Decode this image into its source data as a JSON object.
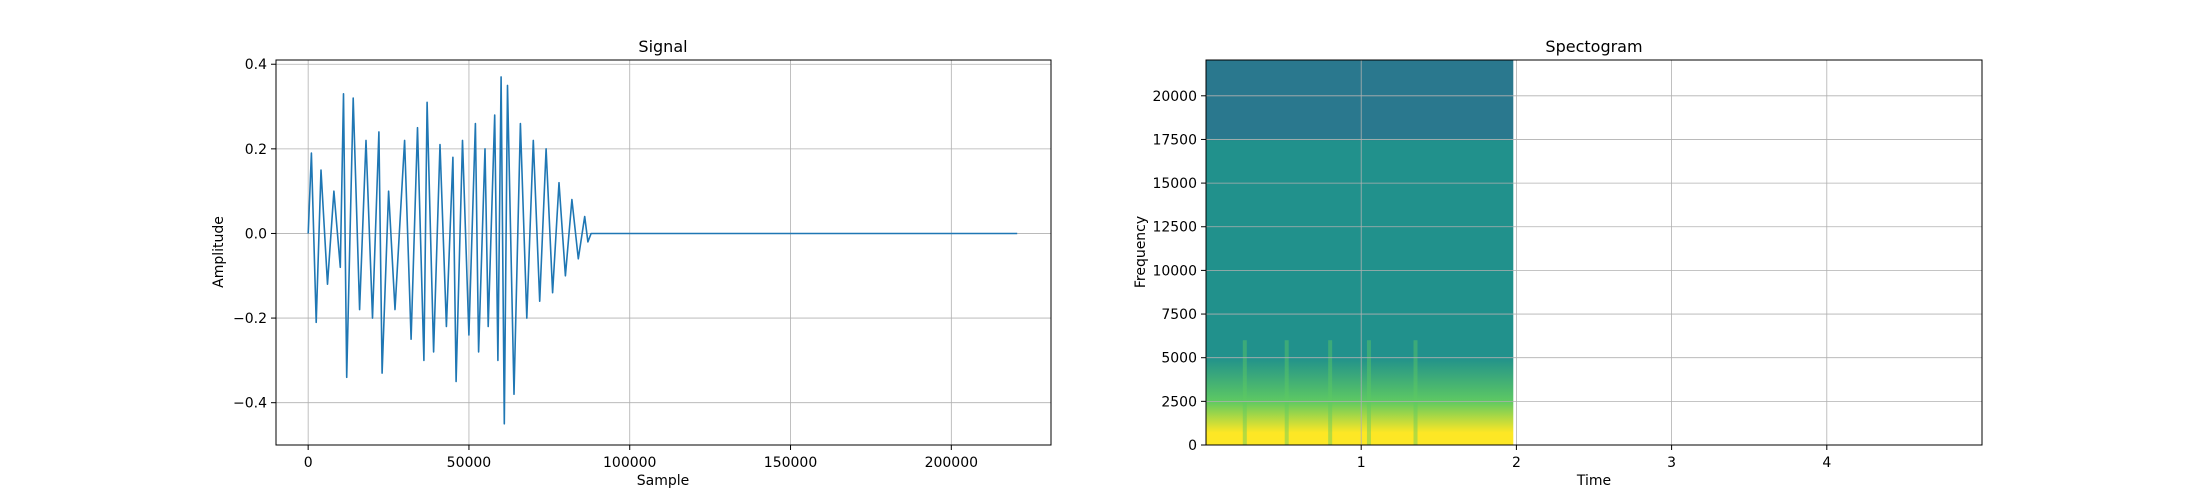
{
  "chart_data": [
    {
      "type": "line",
      "title": "Signal",
      "xlabel": "Sample",
      "ylabel": "Amplitude",
      "xlim": [
        -10000,
        231000
      ],
      "ylim": [
        -0.5,
        0.41
      ],
      "grid": true,
      "x_ticks": [
        0,
        50000,
        100000,
        150000,
        200000
      ],
      "x_tick_labels": [
        "0",
        "50000",
        "100000",
        "150000",
        "200000"
      ],
      "y_ticks": [
        -0.4,
        -0.2,
        0.0,
        0.2,
        0.4
      ],
      "y_tick_labels": [
        "−0.4",
        "−0.2",
        "0.0",
        "0.2",
        "0.4"
      ],
      "color": "#1f77b4",
      "series": [
        {
          "x": [
            0,
            1000,
            2500,
            4000,
            6000,
            8000,
            10000,
            11000,
            12000,
            14000,
            16000,
            18000,
            20000,
            22000,
            23000,
            25000,
            27000,
            30000,
            32000,
            34000,
            36000,
            37000,
            39000,
            41000,
            43000,
            45000,
            46000,
            48000,
            50000,
            52000,
            53000,
            55000,
            56000,
            58000,
            59000,
            60000,
            61000,
            62000,
            64000,
            66000,
            68000,
            70000,
            72000,
            74000,
            76000,
            78000,
            80000,
            82000,
            84000,
            86000,
            87000,
            88000,
            220500
          ],
          "y": [
            0.0,
            0.19,
            -0.21,
            0.15,
            -0.12,
            0.1,
            -0.08,
            0.33,
            -0.34,
            0.32,
            -0.18,
            0.22,
            -0.2,
            0.24,
            -0.33,
            0.1,
            -0.18,
            0.22,
            -0.25,
            0.25,
            -0.3,
            0.31,
            -0.28,
            0.21,
            -0.22,
            0.18,
            -0.35,
            0.22,
            -0.24,
            0.26,
            -0.28,
            0.2,
            -0.22,
            0.28,
            -0.3,
            0.37,
            -0.45,
            0.35,
            -0.38,
            0.26,
            -0.2,
            0.22,
            -0.16,
            0.2,
            -0.14,
            0.12,
            -0.1,
            0.08,
            -0.06,
            0.04,
            -0.02,
            0.0,
            0.0
          ]
        }
      ]
    },
    {
      "type": "heatmap",
      "title": "Spectogram",
      "xlabel": "Time",
      "ylabel": "Frequency",
      "xlim": [
        0,
        5.0
      ],
      "ylim": [
        0,
        22050
      ],
      "grid": true,
      "x_ticks": [
        1,
        2,
        3,
        4
      ],
      "x_tick_labels": [
        "1",
        "2",
        "3",
        "4"
      ],
      "y_ticks": [
        0,
        2500,
        5000,
        7500,
        10000,
        12500,
        15000,
        17500,
        20000
      ],
      "y_tick_labels": [
        "0",
        "2500",
        "5000",
        "7500",
        "10000",
        "12500",
        "15000",
        "17500",
        "20000"
      ],
      "data_extent_time": [
        0,
        1.98
      ],
      "colors": {
        "high_band": "#2a788e",
        "mid_band": "#21918c",
        "low_band": "#5ec962",
        "bottom": "#fde725"
      },
      "band_edges_hz": [
        17500,
        2500,
        700
      ],
      "bursts_time": [
        0.25,
        0.52,
        0.8,
        1.05,
        1.35
      ]
    }
  ]
}
